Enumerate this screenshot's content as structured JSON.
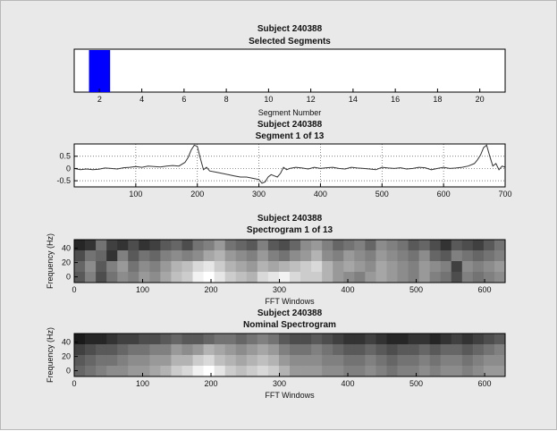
{
  "figure": {
    "background": "#e9e9e9",
    "axes_background": "#ffffff"
  },
  "chart_data": [
    {
      "id": "segments",
      "type": "bar",
      "title": "Subject 240388",
      "subtitle": "Selected Segments",
      "xlabel": "Segment Number",
      "ylabel": "",
      "xlim": [
        0.8,
        21.2
      ],
      "xticks": [
        2,
        4,
        6,
        8,
        10,
        12,
        14,
        16,
        18,
        20
      ],
      "grid": false,
      "bars": [
        {
          "x0": 1.5,
          "x1": 2.5,
          "value": 1,
          "color": "#0000ff"
        }
      ]
    },
    {
      "id": "signal",
      "type": "line",
      "title": "Subject 240388",
      "subtitle": "Segment 1 of 13",
      "xlabel": "",
      "ylabel": "",
      "xlim": [
        0,
        700
      ],
      "ylim": [
        -0.75,
        1.0
      ],
      "xticks": [
        100,
        200,
        300,
        400,
        500,
        600,
        700
      ],
      "yticks": [
        0.5,
        0,
        -0.5
      ],
      "ytick_labels": [
        "0.5",
        "0",
        "-0.5"
      ],
      "grid": true,
      "series": [
        {
          "color": "#333333",
          "x": [
            0,
            10,
            20,
            30,
            40,
            50,
            60,
            70,
            80,
            90,
            100,
            110,
            120,
            130,
            140,
            150,
            160,
            170,
            180,
            185,
            190,
            195,
            200,
            205,
            210,
            215,
            220,
            230,
            240,
            250,
            260,
            270,
            280,
            290,
            300,
            305,
            310,
            315,
            320,
            325,
            330,
            335,
            340,
            345,
            350,
            360,
            370,
            380,
            390,
            400,
            410,
            420,
            430,
            440,
            450,
            460,
            470,
            480,
            490,
            500,
            510,
            520,
            530,
            540,
            550,
            560,
            570,
            580,
            590,
            600,
            610,
            620,
            630,
            640,
            650,
            655,
            660,
            665,
            670,
            675,
            680,
            685,
            690,
            695,
            700
          ],
          "y": [
            0.0,
            -0.05,
            -0.02,
            -0.05,
            -0.03,
            0.02,
            0.0,
            -0.02,
            0.03,
            0.05,
            0.08,
            0.05,
            0.1,
            0.08,
            0.06,
            0.1,
            0.12,
            0.1,
            0.25,
            0.45,
            0.75,
            0.95,
            0.9,
            0.4,
            -0.05,
            0.05,
            -0.1,
            -0.15,
            -0.2,
            -0.25,
            -0.3,
            -0.35,
            -0.35,
            -0.4,
            -0.45,
            -0.6,
            -0.55,
            -0.35,
            -0.25,
            -0.3,
            -0.35,
            -0.2,
            0.05,
            -0.05,
            0.0,
            0.05,
            0.02,
            -0.02,
            0.05,
            0.0,
            0.03,
            0.05,
            0.0,
            -0.02,
            0.05,
            0.02,
            0.0,
            -0.02,
            -0.05,
            0.05,
            0.02,
            0.0,
            0.03,
            -0.02,
            0.0,
            0.05,
            0.03,
            -0.05,
            0.0,
            0.05,
            0.0,
            0.02,
            0.05,
            0.1,
            0.2,
            0.35,
            0.55,
            0.85,
            0.95,
            0.5,
            0.1,
            0.2,
            -0.05,
            0.1,
            0.05
          ]
        }
      ]
    },
    {
      "id": "spectrogram",
      "type": "heatmap",
      "title": "Subject 240388",
      "subtitle": "Spectrogram 1 of 13",
      "xlabel": "FFT Windows",
      "ylabel": "Frequency (Hz)",
      "xlim": [
        0,
        630
      ],
      "ylim": [
        -8,
        52
      ],
      "xticks": [
        0,
        100,
        200,
        300,
        400,
        500,
        600
      ],
      "yticks": [
        0,
        20,
        40
      ],
      "colormap": "gray",
      "rows": [
        [
          0.15,
          0.2,
          0.45,
          0.25,
          0.2,
          0.3,
          0.2,
          0.25,
          0.35,
          0.4,
          0.3,
          0.45,
          0.5,
          0.6,
          0.45,
          0.4,
          0.35,
          0.5,
          0.35,
          0.3,
          0.4,
          0.55,
          0.6,
          0.5,
          0.4,
          0.45,
          0.5,
          0.4,
          0.55,
          0.5,
          0.45,
          0.35,
          0.4,
          0.3,
          0.2,
          0.35,
          0.3,
          0.25,
          0.35,
          0.45
        ],
        [
          0.3,
          0.45,
          0.4,
          0.2,
          0.5,
          0.35,
          0.45,
          0.4,
          0.5,
          0.55,
          0.5,
          0.55,
          0.65,
          0.7,
          0.6,
          0.55,
          0.5,
          0.6,
          0.5,
          0.45,
          0.55,
          0.6,
          0.7,
          0.55,
          0.5,
          0.6,
          0.55,
          0.5,
          0.6,
          0.55,
          0.5,
          0.45,
          0.55,
          0.4,
          0.35,
          0.5,
          0.45,
          0.4,
          0.45,
          0.5
        ],
        [
          0.4,
          0.55,
          0.35,
          0.5,
          0.6,
          0.45,
          0.55,
          0.5,
          0.6,
          0.7,
          0.75,
          0.85,
          0.9,
          0.8,
          0.7,
          0.65,
          0.6,
          0.7,
          0.65,
          0.7,
          0.75,
          0.8,
          0.85,
          0.7,
          0.6,
          0.65,
          0.6,
          0.55,
          0.65,
          0.6,
          0.55,
          0.5,
          0.6,
          0.55,
          0.5,
          0.25,
          0.55,
          0.5,
          0.55,
          0.6
        ],
        [
          0.35,
          0.5,
          0.3,
          0.45,
          0.55,
          0.5,
          0.6,
          0.55,
          0.65,
          0.75,
          0.8,
          0.95,
          1.0,
          0.9,
          0.8,
          0.75,
          0.7,
          0.85,
          0.9,
          0.95,
          0.85,
          0.8,
          0.8,
          0.7,
          0.6,
          0.55,
          0.5,
          0.6,
          0.65,
          0.6,
          0.55,
          0.5,
          0.6,
          0.5,
          0.45,
          0.3,
          0.5,
          0.45,
          0.5,
          0.55
        ]
      ]
    },
    {
      "id": "nominal",
      "type": "heatmap",
      "title": "Subject 240388",
      "subtitle": "Nominal Spectrogram",
      "xlabel": "FFT Windows",
      "ylabel": "Frequency (Hz)",
      "xlim": [
        0,
        630
      ],
      "ylim": [
        -8,
        52
      ],
      "xticks": [
        0,
        100,
        200,
        300,
        400,
        500,
        600
      ],
      "yticks": [
        0,
        20,
        40
      ],
      "colormap": "gray",
      "rows": [
        [
          0.1,
          0.15,
          0.15,
          0.2,
          0.25,
          0.25,
          0.3,
          0.3,
          0.35,
          0.4,
          0.35,
          0.35,
          0.4,
          0.45,
          0.45,
          0.4,
          0.45,
          0.5,
          0.45,
          0.35,
          0.3,
          0.3,
          0.35,
          0.3,
          0.25,
          0.2,
          0.2,
          0.25,
          0.2,
          0.15,
          0.15,
          0.2,
          0.2,
          0.15,
          0.2,
          0.25,
          0.2,
          0.25,
          0.3,
          0.35
        ],
        [
          0.25,
          0.3,
          0.35,
          0.35,
          0.4,
          0.45,
          0.45,
          0.5,
          0.5,
          0.6,
          0.55,
          0.6,
          0.7,
          0.65,
          0.6,
          0.55,
          0.6,
          0.65,
          0.6,
          0.5,
          0.45,
          0.45,
          0.5,
          0.45,
          0.4,
          0.35,
          0.35,
          0.4,
          0.35,
          0.3,
          0.35,
          0.35,
          0.4,
          0.35,
          0.4,
          0.4,
          0.35,
          0.4,
          0.45,
          0.5
        ],
        [
          0.35,
          0.4,
          0.45,
          0.45,
          0.5,
          0.55,
          0.55,
          0.6,
          0.6,
          0.7,
          0.7,
          0.8,
          0.85,
          0.75,
          0.7,
          0.65,
          0.7,
          0.75,
          0.7,
          0.6,
          0.55,
          0.55,
          0.55,
          0.5,
          0.5,
          0.45,
          0.45,
          0.5,
          0.45,
          0.4,
          0.45,
          0.45,
          0.5,
          0.45,
          0.5,
          0.5,
          0.45,
          0.5,
          0.55,
          0.55
        ],
        [
          0.4,
          0.45,
          0.5,
          0.55,
          0.55,
          0.6,
          0.6,
          0.65,
          0.7,
          0.8,
          0.85,
          0.95,
          1.0,
          0.9,
          0.8,
          0.75,
          0.8,
          0.85,
          0.8,
          0.7,
          0.6,
          0.6,
          0.6,
          0.55,
          0.55,
          0.5,
          0.5,
          0.55,
          0.5,
          0.45,
          0.5,
          0.5,
          0.55,
          0.5,
          0.55,
          0.55,
          0.5,
          0.55,
          0.6,
          0.6
        ]
      ]
    }
  ]
}
